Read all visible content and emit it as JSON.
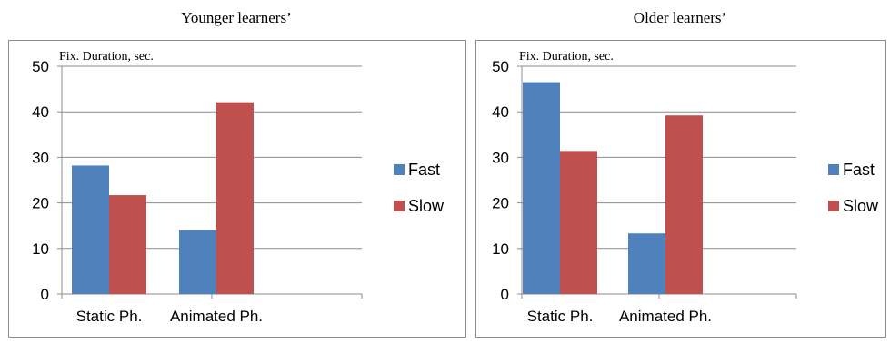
{
  "chart_data": [
    {
      "type": "bar",
      "title": "Younger learners’",
      "ylabel": "Fix. Duration, sec.",
      "xlabel": "",
      "categories": [
        "Static Ph.",
        "Animated Ph."
      ],
      "series": [
        {
          "name": "Fast",
          "values": [
            28.2,
            14.0
          ],
          "color": "#4f81bd"
        },
        {
          "name": "Slow",
          "values": [
            21.7,
            42.1
          ],
          "color": "#c0504d"
        }
      ],
      "ylim": [
        0,
        50
      ],
      "yticks": [
        0,
        10,
        20,
        30,
        40,
        50
      ],
      "grid": true,
      "legend": "right"
    },
    {
      "type": "bar",
      "title": "Older learners’",
      "ylabel": "Fix. Duration, sec.",
      "xlabel": "",
      "categories": [
        "Static Ph.",
        "Animated Ph."
      ],
      "series": [
        {
          "name": "Fast",
          "values": [
            46.5,
            13.3
          ],
          "color": "#4f81bd"
        },
        {
          "name": "Slow",
          "values": [
            31.4,
            39.2
          ],
          "color": "#c0504d"
        }
      ],
      "ylim": [
        0,
        50
      ],
      "yticks": [
        0,
        10,
        20,
        30,
        40,
        50
      ],
      "grid": true,
      "legend": "right"
    }
  ]
}
